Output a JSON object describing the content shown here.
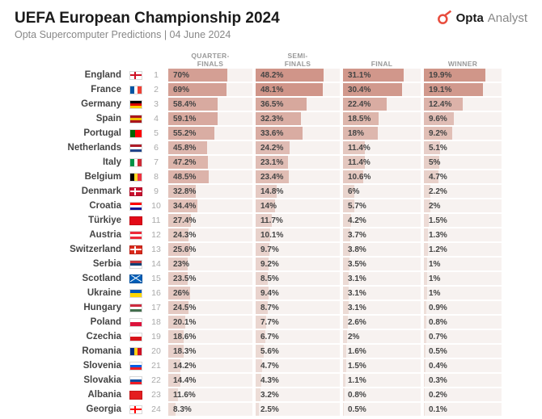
{
  "header": {
    "title": "UEFA European Championship 2024",
    "subtitle": "Opta Supercomputer Predictions | 04 June 2024",
    "logo": {
      "brand": "Opta",
      "suffix": "Analyst"
    }
  },
  "columns": [
    {
      "key": "qf",
      "label": "QUARTER-\nFINALS",
      "max": 100
    },
    {
      "key": "sf",
      "label": "SEMI-\nFINALS",
      "max": 60
    },
    {
      "key": "f",
      "label": "FINAL",
      "max": 40
    },
    {
      "key": "w",
      "label": "WINNER",
      "max": 25
    }
  ],
  "bar_color_scale": {
    "from": "#efe2dd",
    "to": "#c88274"
  },
  "bar_bg": "#f7f2f0",
  "rows": [
    {
      "country": "England",
      "flag": {
        "type": "plus",
        "bg": "#ffffff",
        "cross": "#ce1124"
      },
      "qf": 70.0,
      "sf": 48.2,
      "f": 31.1,
      "w": 19.9
    },
    {
      "country": "France",
      "flag": {
        "type": "v",
        "c": [
          "#0055a4",
          "#ffffff",
          "#ef4135"
        ]
      },
      "qf": 69.0,
      "sf": 48.1,
      "f": 30.4,
      "w": 19.1
    },
    {
      "country": "Germany",
      "flag": {
        "type": "h",
        "c": [
          "#000000",
          "#dd0000",
          "#ffce00"
        ]
      },
      "qf": 58.4,
      "sf": 36.5,
      "f": 22.4,
      "w": 12.4
    },
    {
      "country": "Spain",
      "flag": {
        "type": "h",
        "c": [
          "#aa151b",
          "#f1bf00",
          "#aa151b"
        ]
      },
      "qf": 59.1,
      "sf": 32.3,
      "f": 18.5,
      "w": 9.6
    },
    {
      "country": "Portugal",
      "flag": {
        "type": "v2",
        "c": [
          "#006600",
          "#ff0000"
        ],
        "r": [
          2,
          3
        ]
      },
      "qf": 55.2,
      "sf": 33.6,
      "f": 18.0,
      "w": 9.2
    },
    {
      "country": "Netherlands",
      "flag": {
        "type": "h",
        "c": [
          "#ae1c28",
          "#ffffff",
          "#21468b"
        ]
      },
      "qf": 45.8,
      "sf": 24.2,
      "f": 11.4,
      "w": 5.1
    },
    {
      "country": "Italy",
      "flag": {
        "type": "v",
        "c": [
          "#009246",
          "#ffffff",
          "#ce2b37"
        ]
      },
      "qf": 47.2,
      "sf": 23.1,
      "f": 11.4,
      "w": 5.0
    },
    {
      "country": "Belgium",
      "flag": {
        "type": "v",
        "c": [
          "#000000",
          "#fdda24",
          "#ef3340"
        ]
      },
      "qf": 48.5,
      "sf": 23.4,
      "f": 10.6,
      "w": 4.7
    },
    {
      "country": "Denmark",
      "flag": {
        "type": "plus",
        "bg": "#c8102e",
        "cross": "#ffffff"
      },
      "qf": 32.8,
      "sf": 14.8,
      "f": 6.0,
      "w": 2.2
    },
    {
      "country": "Croatia",
      "flag": {
        "type": "h",
        "c": [
          "#ff0000",
          "#ffffff",
          "#171796"
        ]
      },
      "qf": 34.4,
      "sf": 14.0,
      "f": 5.7,
      "w": 2.0
    },
    {
      "country": "Türkiye",
      "flag": {
        "type": "solid",
        "c": "#e30a17"
      },
      "qf": 27.4,
      "sf": 11.7,
      "f": 4.2,
      "w": 1.5
    },
    {
      "country": "Austria",
      "flag": {
        "type": "h",
        "c": [
          "#ed2939",
          "#ffffff",
          "#ed2939"
        ]
      },
      "qf": 24.3,
      "sf": 10.1,
      "f": 3.7,
      "w": 1.3
    },
    {
      "country": "Switzerland",
      "flag": {
        "type": "plus",
        "bg": "#da291c",
        "cross": "#ffffff"
      },
      "qf": 25.6,
      "sf": 9.7,
      "f": 3.8,
      "w": 1.2
    },
    {
      "country": "Serbia",
      "flag": {
        "type": "h",
        "c": [
          "#c6363c",
          "#0c4076",
          "#ffffff"
        ]
      },
      "qf": 23.0,
      "sf": 9.2,
      "f": 3.5,
      "w": 1.0
    },
    {
      "country": "Scotland",
      "flag": {
        "type": "x",
        "bg": "#005eb8",
        "cross": "#ffffff"
      },
      "qf": 23.5,
      "sf": 8.5,
      "f": 3.1,
      "w": 1.0
    },
    {
      "country": "Ukraine",
      "flag": {
        "type": "h2",
        "c": [
          "#0057b7",
          "#ffd700"
        ]
      },
      "qf": 26.0,
      "sf": 9.4,
      "f": 3.1,
      "w": 1.0
    },
    {
      "country": "Hungary",
      "flag": {
        "type": "h",
        "c": [
          "#cd2a3e",
          "#ffffff",
          "#436f4d"
        ]
      },
      "qf": 24.5,
      "sf": 8.7,
      "f": 3.1,
      "w": 0.9
    },
    {
      "country": "Poland",
      "flag": {
        "type": "h2",
        "c": [
          "#ffffff",
          "#dc143c"
        ]
      },
      "qf": 20.1,
      "sf": 7.7,
      "f": 2.6,
      "w": 0.8
    },
    {
      "country": "Czechia",
      "flag": {
        "type": "h2",
        "c": [
          "#ffffff",
          "#d7141a"
        ]
      },
      "qf": 18.6,
      "sf": 6.7,
      "f": 2.0,
      "w": 0.7
    },
    {
      "country": "Romania",
      "flag": {
        "type": "v",
        "c": [
          "#002b7f",
          "#fcd116",
          "#ce1126"
        ]
      },
      "qf": 18.3,
      "sf": 5.6,
      "f": 1.6,
      "w": 0.5
    },
    {
      "country": "Slovenia",
      "flag": {
        "type": "h",
        "c": [
          "#ffffff",
          "#005ce5",
          "#ed1c24"
        ]
      },
      "qf": 14.2,
      "sf": 4.7,
      "f": 1.5,
      "w": 0.4
    },
    {
      "country": "Slovakia",
      "flag": {
        "type": "h",
        "c": [
          "#ffffff",
          "#0b4ea2",
          "#ee1c25"
        ]
      },
      "qf": 14.4,
      "sf": 4.3,
      "f": 1.1,
      "w": 0.3
    },
    {
      "country": "Albania",
      "flag": {
        "type": "solid",
        "c": "#e41e20"
      },
      "qf": 11.6,
      "sf": 3.2,
      "f": 0.8,
      "w": 0.2
    },
    {
      "country": "Georgia",
      "flag": {
        "type": "plus",
        "bg": "#ffffff",
        "cross": "#ff0000"
      },
      "qf": 8.3,
      "sf": 2.5,
      "f": 0.5,
      "w": 0.1
    }
  ]
}
